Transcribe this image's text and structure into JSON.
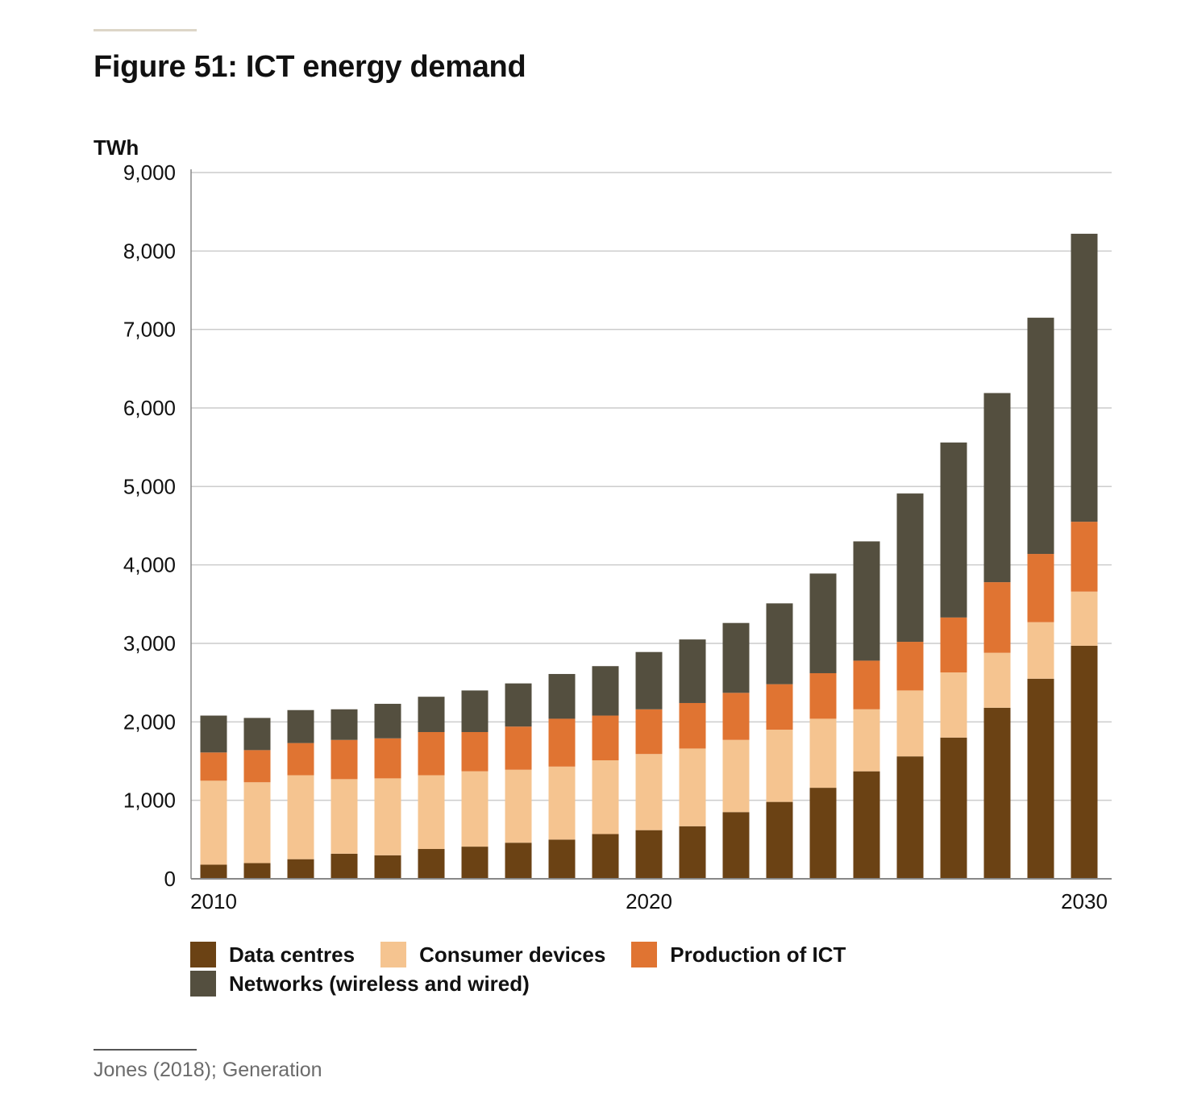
{
  "title": "Figure 51: ICT energy demand",
  "source": "Jones (2018); Generation",
  "colors": {
    "data_centres": "#6b4214",
    "consumer_devices": "#f5c490",
    "production_of_ict": "#e07432",
    "networks": "#544f3f",
    "grid": "#cccccc",
    "axis": "#888888"
  },
  "legend": [
    {
      "label": "Data centres",
      "color": "#6b4214"
    },
    {
      "label": "Consumer devices",
      "color": "#f5c490"
    },
    {
      "label": "Production of ICT",
      "color": "#e07432"
    },
    {
      "label": "Networks (wireless and wired)",
      "color": "#544f3f"
    }
  ],
  "chart_data": {
    "type": "bar",
    "stacked": true,
    "ylabel": "TWh",
    "ylim": [
      0,
      9000
    ],
    "yticks": [
      "0",
      "1,000",
      "2,000",
      "3,000",
      "4,000",
      "5,000",
      "6,000",
      "7,000",
      "8,000",
      "9,000"
    ],
    "xtick_labels": [
      "2010",
      "2020",
      "2030"
    ],
    "grid": true,
    "legend_position": "bottom",
    "categories": [
      "2010",
      "2011",
      "2012",
      "2013",
      "2014",
      "2015",
      "2016",
      "2017",
      "2018",
      "2019",
      "2020",
      "2021",
      "2022",
      "2023",
      "2024",
      "2025",
      "2026",
      "2027",
      "2028",
      "2029",
      "2030"
    ],
    "series": [
      {
        "name": "Data centres",
        "color": "#6b4214",
        "values": [
          180,
          200,
          250,
          320,
          300,
          380,
          410,
          460,
          500,
          570,
          620,
          670,
          850,
          980,
          1160,
          1370,
          1560,
          1800,
          2180,
          2550,
          2970
        ]
      },
      {
        "name": "Consumer devices",
        "color": "#f5c490",
        "values": [
          1070,
          1030,
          1070,
          950,
          980,
          940,
          960,
          930,
          930,
          940,
          970,
          990,
          920,
          920,
          880,
          790,
          840,
          830,
          700,
          720,
          690
        ]
      },
      {
        "name": "Production of ICT",
        "color": "#e07432",
        "values": [
          360,
          410,
          410,
          500,
          510,
          550,
          500,
          550,
          610,
          570,
          570,
          580,
          600,
          580,
          580,
          620,
          620,
          700,
          900,
          870,
          890
        ]
      },
      {
        "name": "Networks (wireless and wired)",
        "color": "#544f3f",
        "values": [
          470,
          410,
          420,
          390,
          440,
          450,
          530,
          550,
          570,
          630,
          730,
          810,
          890,
          1030,
          1270,
          1520,
          1890,
          2230,
          2410,
          3010,
          3670
        ]
      }
    ]
  }
}
